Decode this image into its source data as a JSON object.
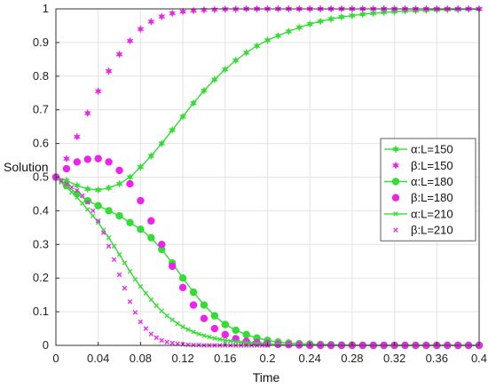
{
  "chart_data": {
    "type": "line",
    "title": "",
    "xlabel": "Time",
    "ylabel": "Solution",
    "xlim": [
      0,
      0.4
    ],
    "ylim": [
      0,
      1
    ],
    "x_ticks": [
      "0",
      "0.04",
      "0.08",
      "0.12",
      "0.16",
      "0.2",
      "0.24",
      "0.28",
      "0.32",
      "0.36",
      "0.4"
    ],
    "y_ticks": [
      "0",
      "0.1",
      "0.2",
      "0.3",
      "0.4",
      "0.5",
      "0.6",
      "0.7",
      "0.8",
      "0.9",
      "1"
    ],
    "grid": true,
    "legend_position": "right",
    "series": [
      {
        "name": "α:L=150",
        "color": "#33dd33",
        "marker": "star",
        "line": true,
        "x": [
          0,
          0.01,
          0.02,
          0.03,
          0.04,
          0.05,
          0.06,
          0.07,
          0.08,
          0.09,
          0.1,
          0.11,
          0.12,
          0.13,
          0.14,
          0.15,
          0.16,
          0.17,
          0.18,
          0.19,
          0.2,
          0.21,
          0.22,
          0.23,
          0.24,
          0.25,
          0.26,
          0.27,
          0.28,
          0.29,
          0.3,
          0.31,
          0.32,
          0.33,
          0.34,
          0.35,
          0.36,
          0.37,
          0.38,
          0.39,
          0.4
        ],
        "y": [
          0.5,
          0.49,
          0.475,
          0.465,
          0.462,
          0.468,
          0.48,
          0.5,
          0.53,
          0.563,
          0.6,
          0.64,
          0.68,
          0.72,
          0.757,
          0.79,
          0.82,
          0.847,
          0.87,
          0.89,
          0.907,
          0.92,
          0.933,
          0.945,
          0.955,
          0.963,
          0.97,
          0.976,
          0.98,
          0.984,
          0.987,
          0.99,
          0.992,
          0.994,
          0.995,
          0.996,
          0.997,
          0.998,
          0.998,
          0.999,
          0.999
        ]
      },
      {
        "name": "β:L=150",
        "color": "#ee22ee",
        "marker": "star",
        "line": false,
        "x": [
          0,
          0.01,
          0.02,
          0.03,
          0.04,
          0.05,
          0.06,
          0.07,
          0.08,
          0.09,
          0.1,
          0.11,
          0.12,
          0.13,
          0.14,
          0.15,
          0.16,
          0.17,
          0.18,
          0.19,
          0.2,
          0.21,
          0.22,
          0.23,
          0.24,
          0.25,
          0.26,
          0.27,
          0.28,
          0.29,
          0.3,
          0.31,
          0.32,
          0.33,
          0.34,
          0.35,
          0.36,
          0.37,
          0.38,
          0.39,
          0.4
        ],
        "y": [
          0.5,
          0.555,
          0.62,
          0.69,
          0.755,
          0.815,
          0.865,
          0.905,
          0.94,
          0.962,
          0.977,
          0.987,
          0.992,
          0.995,
          0.997,
          0.998,
          0.999,
          0.999,
          1,
          1,
          1,
          1,
          1,
          1,
          1,
          1,
          1,
          1,
          1,
          1,
          1,
          1,
          1,
          1,
          1,
          1,
          1,
          1,
          1,
          1,
          1
        ]
      },
      {
        "name": "α:L=180",
        "color": "#33dd33",
        "marker": "circle",
        "line": true,
        "x": [
          0,
          0.01,
          0.02,
          0.03,
          0.04,
          0.05,
          0.06,
          0.07,
          0.08,
          0.09,
          0.1,
          0.11,
          0.12,
          0.13,
          0.14,
          0.15,
          0.16,
          0.17,
          0.18,
          0.19,
          0.2,
          0.21,
          0.22,
          0.23,
          0.24,
          0.25,
          0.26,
          0.27,
          0.28,
          0.29,
          0.3,
          0.31,
          0.32,
          0.33,
          0.34,
          0.35,
          0.36,
          0.37,
          0.38,
          0.39,
          0.4
        ],
        "y": [
          0.5,
          0.475,
          0.45,
          0.43,
          0.415,
          0.4,
          0.385,
          0.365,
          0.345,
          0.32,
          0.285,
          0.245,
          0.2,
          0.158,
          0.12,
          0.088,
          0.062,
          0.045,
          0.032,
          0.022,
          0.015,
          0.01,
          0.007,
          0.005,
          0.004,
          0.003,
          0.002,
          0.001,
          0.001,
          0,
          0,
          0,
          0,
          0,
          0,
          0,
          0,
          0,
          0,
          0,
          0
        ]
      },
      {
        "name": "β:L=180",
        "color": "#ee22ee",
        "marker": "circle",
        "line": false,
        "x": [
          0,
          0.01,
          0.02,
          0.03,
          0.04,
          0.05,
          0.06,
          0.07,
          0.08,
          0.09,
          0.1,
          0.11,
          0.12,
          0.13,
          0.14,
          0.15,
          0.16,
          0.17,
          0.18,
          0.19,
          0.2,
          0.21,
          0.22,
          0.23,
          0.24,
          0.25,
          0.26,
          0.27,
          0.28,
          0.29,
          0.3,
          0.31,
          0.32,
          0.33,
          0.34,
          0.35,
          0.36,
          0.37,
          0.38,
          0.39,
          0.4
        ],
        "y": [
          0.5,
          0.525,
          0.545,
          0.553,
          0.555,
          0.545,
          0.52,
          0.48,
          0.43,
          0.37,
          0.3,
          0.235,
          0.172,
          0.12,
          0.08,
          0.05,
          0.032,
          0.02,
          0.012,
          0.008,
          0.005,
          0.003,
          0.002,
          0.001,
          0,
          0,
          0,
          0,
          0,
          0,
          0,
          0,
          0,
          0,
          0,
          0,
          0,
          0,
          0,
          0,
          0
        ]
      },
      {
        "name": "α:L=210",
        "color": "#33dd33",
        "marker": "x",
        "line": true,
        "x": [
          0,
          0.005,
          0.01,
          0.015,
          0.02,
          0.025,
          0.03,
          0.035,
          0.04,
          0.045,
          0.05,
          0.055,
          0.06,
          0.065,
          0.07,
          0.075,
          0.08,
          0.085,
          0.09,
          0.095,
          0.1,
          0.105,
          0.11,
          0.115,
          0.12,
          0.125,
          0.13,
          0.135,
          0.14,
          0.145,
          0.15,
          0.155,
          0.16,
          0.165,
          0.17,
          0.175,
          0.18,
          0.185,
          0.19,
          0.195,
          0.2,
          0.21,
          0.22,
          0.23,
          0.24,
          0.25,
          0.26,
          0.27,
          0.28,
          0.29,
          0.3,
          0.31,
          0.32,
          0.33,
          0.34,
          0.35,
          0.36,
          0.37,
          0.38,
          0.39,
          0.4
        ],
        "y": [
          0.5,
          0.485,
          0.47,
          0.455,
          0.44,
          0.422,
          0.404,
          0.385,
          0.365,
          0.343,
          0.32,
          0.295,
          0.27,
          0.245,
          0.22,
          0.196,
          0.175,
          0.155,
          0.136,
          0.118,
          0.102,
          0.088,
          0.076,
          0.065,
          0.055,
          0.047,
          0.04,
          0.034,
          0.029,
          0.025,
          0.021,
          0.018,
          0.015,
          0.013,
          0.011,
          0.009,
          0.008,
          0.007,
          0.006,
          0.005,
          0.004,
          0.003,
          0.002,
          0.001,
          0.001,
          0,
          0,
          0,
          0,
          0,
          0,
          0,
          0,
          0,
          0,
          0,
          0,
          0,
          0,
          0,
          0
        ]
      },
      {
        "name": "β:L=210",
        "color": "#ee22ee",
        "marker": "x",
        "line": false,
        "x": [
          0,
          0.005,
          0.01,
          0.015,
          0.02,
          0.025,
          0.03,
          0.035,
          0.04,
          0.045,
          0.05,
          0.055,
          0.06,
          0.065,
          0.07,
          0.075,
          0.08,
          0.085,
          0.09,
          0.095,
          0.1,
          0.105,
          0.11,
          0.115,
          0.12,
          0.125,
          0.13,
          0.135,
          0.14,
          0.145,
          0.15,
          0.155,
          0.16,
          0.165,
          0.17,
          0.175,
          0.18,
          0.185,
          0.19,
          0.195,
          0.2,
          0.21,
          0.22,
          0.23,
          0.24,
          0.25,
          0.26,
          0.27,
          0.28,
          0.29,
          0.3,
          0.31,
          0.32,
          0.33,
          0.34,
          0.35,
          0.36,
          0.37,
          0.38,
          0.39,
          0.4
        ],
        "y": [
          0.5,
          0.49,
          0.48,
          0.47,
          0.46,
          0.445,
          0.425,
          0.4,
          0.37,
          0.335,
          0.295,
          0.255,
          0.21,
          0.17,
          0.13,
          0.098,
          0.07,
          0.05,
          0.034,
          0.023,
          0.015,
          0.01,
          0.007,
          0.005,
          0.003,
          0.002,
          0.001,
          0.001,
          0,
          0,
          0,
          0,
          0,
          0,
          0,
          0,
          0,
          0,
          0,
          0,
          0,
          0,
          0,
          0,
          0,
          0,
          0,
          0,
          0,
          0,
          0,
          0,
          0,
          0,
          0,
          0,
          0,
          0,
          0,
          0,
          0
        ]
      }
    ]
  }
}
